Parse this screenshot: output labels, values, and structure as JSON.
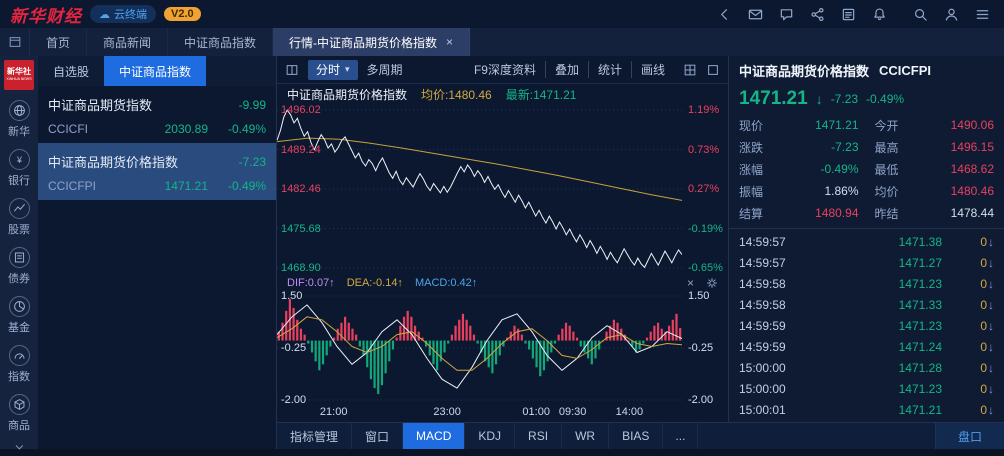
{
  "top_bar": {
    "logo": "新华财经",
    "cloud_badge": "云终端",
    "version_badge": "V2.0",
    "icons": [
      "collapse-left",
      "mail",
      "message",
      "share",
      "news",
      "notification",
      "search",
      "user",
      "menu"
    ]
  },
  "tab_bar": {
    "tabs": [
      {
        "label": "首页",
        "active": false,
        "closable": false
      },
      {
        "label": "商品新闻",
        "active": false,
        "closable": false
      },
      {
        "label": "中证商品指数",
        "active": false,
        "closable": false
      },
      {
        "label": "行情-中证商品期货价格指数",
        "active": true,
        "closable": true
      }
    ]
  },
  "sidebar": {
    "logo_top": "新华社",
    "logo_bottom": "XINHUA NEWS",
    "items": [
      {
        "icon": "xinhua-icon",
        "label": "新华"
      },
      {
        "icon": "bank-icon",
        "label": "银行"
      },
      {
        "icon": "stock-icon",
        "label": "股票"
      },
      {
        "icon": "bond-icon",
        "label": "债券"
      },
      {
        "icon": "fund-icon",
        "label": "基金"
      },
      {
        "icon": "index-icon",
        "label": "指数"
      },
      {
        "icon": "commodity-icon",
        "label": "商品"
      }
    ]
  },
  "watchlist": {
    "tabs": [
      {
        "label": "自选股",
        "active": false
      },
      {
        "label": "中证商品指数",
        "active": true
      }
    ],
    "rows": [
      {
        "name": "中证商品期货指数",
        "code": "CCICFI",
        "price": "2030.89",
        "change": "-9.99",
        "pct": "-0.49%",
        "selected": false
      },
      {
        "name": "中证商品期货价格指数",
        "code": "CCICFPI",
        "price": "1471.21",
        "change": "-7.23",
        "pct": "-0.49%",
        "selected": true
      }
    ]
  },
  "chart_toolbar": {
    "period": "分时",
    "multi_period": "多周期",
    "right_items": [
      "F9深度资料",
      "叠加",
      "统计",
      "画线"
    ]
  },
  "chart_header": {
    "title": "中证商品期货价格指数",
    "avg": "均价:1480.46",
    "last": "最新:1471.21"
  },
  "indicator_header": {
    "dif": "DIF:0.07↑",
    "dea": "DEA:-0.14↑",
    "macd": "MACD:0.42↑"
  },
  "bottom_bar": {
    "items": [
      "指标管理",
      "窗口",
      "MACD",
      "KDJ",
      "RSI",
      "WR",
      "BIAS"
    ],
    "active": "MACD",
    "more": "...",
    "right": "盘口"
  },
  "quote_panel": {
    "title": "中证商品期货价格指数",
    "code": "CCICFPI",
    "price": "1471.21",
    "change": "-7.23",
    "pct": "-0.49%",
    "stats": [
      {
        "l1": "现价",
        "v1": "1471.21",
        "c1": "down",
        "l2": "今开",
        "v2": "1490.06",
        "c2": "up"
      },
      {
        "l1": "涨跌",
        "v1": "-7.23",
        "c1": "down",
        "l2": "最高",
        "v2": "1496.15",
        "c2": "up"
      },
      {
        "l1": "涨幅",
        "v1": "-0.49%",
        "c1": "down",
        "l2": "最低",
        "v2": "1468.62",
        "c2": "up"
      },
      {
        "l1": "振幅",
        "v1": "1.86%",
        "c1": "flat",
        "l2": "均价",
        "v2": "1480.46",
        "c2": "up"
      },
      {
        "l1": "结算",
        "v1": "1480.94",
        "c1": "up",
        "l2": "昨结",
        "v2": "1478.44",
        "c2": "flat"
      }
    ],
    "ticks": [
      {
        "time": "14:59:57",
        "price": "1471.38",
        "vol": "0"
      },
      {
        "time": "14:59:57",
        "price": "1471.27",
        "vol": "0"
      },
      {
        "time": "14:59:58",
        "price": "1471.23",
        "vol": "0"
      },
      {
        "time": "14:59:58",
        "price": "1471.33",
        "vol": "0"
      },
      {
        "time": "14:59:59",
        "price": "1471.23",
        "vol": "0"
      },
      {
        "time": "14:59:59",
        "price": "1471.24",
        "vol": "0"
      },
      {
        "time": "15:00:00",
        "price": "1471.28",
        "vol": "0"
      },
      {
        "time": "15:00:00",
        "price": "1471.23",
        "vol": "0"
      },
      {
        "time": "15:00:01",
        "price": "1471.21",
        "vol": "0"
      }
    ]
  },
  "chart_data": [
    {
      "type": "line",
      "title": "中证商品期货价格指数 分时走势",
      "ylim": [
        1468.9,
        1496.02
      ],
      "prev_close": 1478.44,
      "y_labels_left": [
        "1496.02",
        "1489.24",
        "1482.46",
        "1475.68",
        "1468.90"
      ],
      "y_labels_right": [
        "1.19%",
        "0.73%",
        "0.27%",
        "-0.19%",
        "-0.65%"
      ],
      "y_label_colors": [
        "up",
        "up",
        "up",
        "down",
        "down"
      ],
      "x_ticks": [
        "21:00",
        "23:00",
        "01:00",
        "09:30",
        "14:00"
      ],
      "x_tick_pos": [
        0.14,
        0.42,
        0.64,
        0.73,
        0.87
      ],
      "series": [
        {
          "name": "价格",
          "color": "#eef2f8",
          "values": [
            1490.8,
            1492.5,
            1494.8,
            1496.0,
            1495.2,
            1493.8,
            1494.6,
            1492.9,
            1491.5,
            1492.3,
            1490.4,
            1489.2,
            1490.6,
            1491.8,
            1490.9,
            1489.5,
            1490.2,
            1488.8,
            1489.6,
            1490.8,
            1491.4,
            1490.2,
            1489.0,
            1487.8,
            1488.6,
            1487.2,
            1486.4,
            1487.5,
            1486.8,
            1485.6,
            1486.9,
            1487.8,
            1486.5,
            1485.2,
            1484.3,
            1485.5,
            1484.0,
            1483.2,
            1484.4,
            1483.6,
            1482.8,
            1484.0,
            1485.1,
            1484.2,
            1483.0,
            1482.2,
            1483.4,
            1482.6,
            1481.8,
            1482.9,
            1481.9,
            1482.8,
            1484.0,
            1485.2,
            1486.3,
            1485.4,
            1486.6,
            1485.8,
            1484.6,
            1485.6,
            1484.8,
            1483.6,
            1484.6,
            1483.4,
            1482.4,
            1483.2,
            1482.0,
            1481.0,
            1482.2,
            1481.2,
            1480.2,
            1481.4,
            1480.4,
            1479.2,
            1480.2,
            1479.0,
            1477.8,
            1478.8,
            1477.6,
            1476.6,
            1477.8,
            1476.8,
            1475.6,
            1476.8,
            1475.8,
            1474.6,
            1475.6,
            1474.4,
            1473.4,
            1474.6,
            1473.6,
            1472.4,
            1473.6,
            1472.6,
            1471.4,
            1472.6,
            1471.6,
            1470.4,
            1471.6,
            1470.6,
            1469.8,
            1471.0,
            1472.2,
            1471.2,
            1470.2,
            1469.4,
            1470.6,
            1469.6,
            1469.0,
            1470.2,
            1471.4,
            1470.4,
            1469.4,
            1470.6,
            1471.8,
            1470.8,
            1469.8,
            1471.0,
            1472.0,
            1471.2
          ]
        },
        {
          "name": "均价",
          "color": "#c9a13d",
          "values": [
            1490.6,
            1491.2,
            1491.0,
            1490.3,
            1489.5,
            1488.6,
            1487.7,
            1486.8,
            1485.8,
            1484.8,
            1483.7,
            1482.6,
            1481.5,
            1480.5
          ]
        }
      ]
    },
    {
      "type": "bar",
      "name": "MACD",
      "ylim": [
        -2.0,
        1.5
      ],
      "y_labels": [
        "1.50",
        "-0.25",
        "-2.00"
      ],
      "colors": {
        "bar_up": "#e9405f",
        "bar_down": "#13a678",
        "dif": "#eef2f8",
        "dea": "#d2a93f"
      },
      "bar_values": [
        0.3,
        0.6,
        1.0,
        1.4,
        1.1,
        0.7,
        0.4,
        0.2,
        -0.1,
        -0.4,
        -0.7,
        -1.0,
        -0.8,
        -0.5,
        -0.2,
        0.1,
        0.4,
        0.6,
        0.8,
        0.6,
        0.4,
        0.2,
        -0.2,
        -0.5,
        -0.9,
        -1.3,
        -1.6,
        -1.8,
        -1.5,
        -1.1,
        -0.7,
        -0.3,
        0.1,
        0.5,
        0.8,
        1.0,
        0.8,
        0.5,
        0.3,
        0.1,
        -0.2,
        -0.5,
        -0.8,
        -1.0,
        -0.7,
        -0.4,
        -0.1,
        0.2,
        0.5,
        0.7,
        0.9,
        0.7,
        0.5,
        0.2,
        -0.1,
        -0.4,
        -0.7,
        -0.9,
        -1.1,
        -0.8,
        -0.5,
        -0.2,
        0.1,
        0.3,
        0.5,
        0.4,
        0.2,
        -0.1,
        -0.3,
        -0.6,
        -0.9,
        -1.2,
        -1.0,
        -0.7,
        -0.4,
        -0.1,
        0.2,
        0.4,
        0.6,
        0.5,
        0.3,
        0.1,
        -0.2,
        -0.4,
        -0.6,
        -0.8,
        -0.6,
        -0.3,
        0.0,
        0.3,
        0.5,
        0.7,
        0.6,
        0.4,
        0.2,
        0.0,
        -0.2,
        -0.4,
        -0.3,
        -0.1,
        0.1,
        0.3,
        0.5,
        0.6,
        0.4,
        0.3,
        0.5,
        0.7,
        0.9,
        0.42
      ],
      "dif_values": [
        0.2,
        0.8,
        1.2,
        0.6,
        -0.2,
        -0.8,
        -0.4,
        0.3,
        0.7,
        0.2,
        -0.6,
        -1.3,
        -1.6,
        -0.9,
        0.0,
        0.7,
        0.9,
        0.3,
        -0.5,
        -1.0,
        -0.6,
        0.1,
        0.5,
        0.2,
        -0.4,
        -0.2,
        0.3,
        0.07
      ],
      "dea_values": [
        0.1,
        0.4,
        0.8,
        0.7,
        0.3,
        -0.2,
        -0.4,
        -0.2,
        0.2,
        0.3,
        -0.1,
        -0.6,
        -1.0,
        -1.0,
        -0.6,
        -0.1,
        0.3,
        0.4,
        0.0,
        -0.5,
        -0.6,
        -0.3,
        0.1,
        0.2,
        -0.1,
        -0.2,
        -0.1,
        -0.14
      ]
    }
  ]
}
